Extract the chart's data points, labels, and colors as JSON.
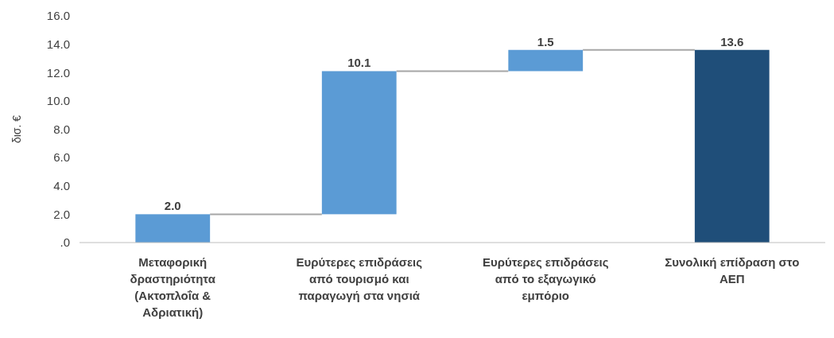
{
  "chart_data": {
    "type": "bar",
    "ylabel": "δισ. €",
    "categories": [
      "Μεταφορική δραστηριότητα (Ακτοπλοΐα & Αδριατική)",
      "Ευρύτερες επιδράσεις από τουρισμό και παραγωγή στα νησιά",
      "Ευρύτερες επιδράσεις από το εξαγωγικό εμπόριο",
      "Συνολική επίδραση στο ΑΕΠ"
    ],
    "values": [
      2.0,
      10.1,
      1.5,
      13.6
    ],
    "base": [
      0,
      2.0,
      12.1,
      0
    ],
    "colors": [
      "#5b9bd5",
      "#5b9bd5",
      "#5b9bd5",
      "#1f4e79"
    ],
    "ylim": [
      0,
      16
    ],
    "yticks": [
      {
        "value": 0,
        "label": ".0"
      },
      {
        "value": 2,
        "label": "2.0"
      },
      {
        "value": 4,
        "label": "4.0"
      },
      {
        "value": 6,
        "label": "6.0"
      },
      {
        "value": 8,
        "label": "8.0"
      },
      {
        "value": 10,
        "label": "10.0"
      },
      {
        "value": 12,
        "label": "12.0"
      },
      {
        "value": 14,
        "label": "14.0"
      },
      {
        "value": 16,
        "label": "16.0"
      }
    ],
    "value_labels": [
      "2.0",
      "10.1",
      "1.5",
      "13.6"
    ],
    "grid": false
  }
}
